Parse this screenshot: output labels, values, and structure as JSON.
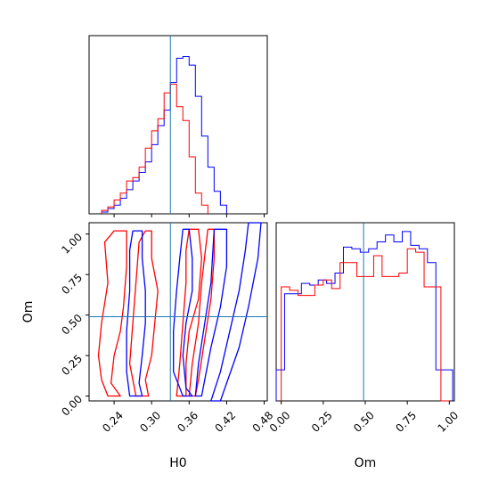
{
  "chart_data": {
    "type": "corner",
    "parameters": [
      "H0",
      "Om"
    ],
    "truths": {
      "H0": 0.33,
      "Om": 0.49
    },
    "colors": {
      "series_a": "#ff0000",
      "series_b": "#0000ff",
      "truth": "#1f77b4"
    },
    "panels": [
      {
        "id": "hist-H0",
        "type": "histogram",
        "xlim": [
          0.2,
          0.485
        ],
        "bin_width": 0.01,
        "series": [
          {
            "color": "#0000ff",
            "bin_start": 0.22,
            "values": [
              0.01,
              0.03,
              0.05,
              0.09,
              0.14,
              0.19,
              0.24,
              0.3,
              0.4,
              0.51,
              0.6,
              0.76,
              0.9,
              0.91,
              0.86,
              0.68,
              0.45,
              0.27,
              0.13,
              0.05
            ]
          },
          {
            "color": "#ff0000",
            "bin_start": 0.22,
            "values": [
              0.02,
              0.04,
              0.08,
              0.12,
              0.19,
              0.21,
              0.27,
              0.38,
              0.48,
              0.55,
              0.7,
              0.75,
              0.62,
              0.54,
              0.33,
              0.12,
              0.05
            ]
          }
        ]
      },
      {
        "id": "hist-Om",
        "type": "histogram",
        "xlim": [
          -0.03,
          1.03
        ],
        "xticks": [
          "0.00",
          "0.25",
          "0.50",
          "0.75",
          "1.00"
        ],
        "xlabel": "Om",
        "bin_width": 0.05,
        "series": [
          {
            "color": "#0000ff",
            "bin_start": -0.03,
            "values": [
              0.18,
              0.62,
              0.62,
              0.68,
              0.67,
              0.7,
              0.68,
              0.74,
              0.89,
              0.88,
              0.86,
              0.88,
              0.92,
              0.96,
              0.92,
              0.98,
              0.9,
              0.88,
              0.8,
              0.18,
              0.18
            ]
          },
          {
            "color": "#ff0000",
            "bin_start": 0.0,
            "values": [
              0.66,
              0.64,
              0.61,
              0.61,
              0.67,
              0.7,
              0.65,
              0.8,
              0.8,
              0.72,
              0.72,
              0.84,
              0.72,
              0.72,
              0.74,
              0.88,
              0.86,
              0.66,
              0.66,
              0.0
            ]
          }
        ]
      },
      {
        "id": "contour-H0-Om",
        "type": "contour",
        "xlim": [
          0.2,
          0.485
        ],
        "ylim": [
          -0.03,
          1.07
        ],
        "xticks": [
          "0.24",
          "0.30",
          "0.36",
          "0.42",
          "0.48"
        ],
        "yticks": [
          "0.00",
          "0.25",
          "0.50",
          "0.75",
          "1.00"
        ],
        "xlabel": "H0",
        "ylabel": "Om",
        "series": [
          {
            "color": "#ff0000",
            "contours": [
              [
                [
                  0.24,
                  1.02
                ],
                [
                  0.26,
                  1.02
                ],
                [
                  0.26,
                  0.8
                ],
                [
                  0.255,
                  0.55
                ],
                [
                  0.25,
                  0.4
                ],
                [
                  0.24,
                  0.25
                ],
                [
                  0.235,
                  0.08
                ],
                [
                  0.25,
                  0.0
                ],
                [
                  0.23,
                  0.0
                ],
                [
                  0.22,
                  0.1
                ],
                [
                  0.215,
                  0.25
                ],
                [
                  0.22,
                  0.45
                ],
                [
                  0.23,
                  0.7
                ],
                [
                  0.225,
                  0.95
                ],
                [
                  0.24,
                  1.02
                ]
              ],
              [
                [
                  0.29,
                  1.02
                ],
                [
                  0.3,
                  1.02
                ],
                [
                  0.3,
                  0.85
                ],
                [
                  0.31,
                  0.65
                ],
                [
                  0.305,
                  0.45
                ],
                [
                  0.3,
                  0.25
                ],
                [
                  0.29,
                  0.1
                ],
                [
                  0.295,
                  0.0
                ],
                [
                  0.275,
                  0.0
                ],
                [
                  0.265,
                  0.2
                ],
                [
                  0.27,
                  0.45
                ],
                [
                  0.275,
                  0.7
                ],
                [
                  0.28,
                  0.95
                ],
                [
                  0.29,
                  1.02
                ]
              ],
              [
                [
                  0.36,
                  1.03
                ],
                [
                  0.375,
                  1.03
                ],
                [
                  0.38,
                  0.85
                ],
                [
                  0.375,
                  0.6
                ],
                [
                  0.36,
                  0.4
                ],
                [
                  0.355,
                  0.2
                ],
                [
                  0.355,
                  0.0
                ],
                [
                  0.34,
                  0.0
                ],
                [
                  0.345,
                  0.2
                ],
                [
                  0.35,
                  0.45
                ],
                [
                  0.355,
                  0.7
                ],
                [
                  0.355,
                  0.9
                ],
                [
                  0.36,
                  1.03
                ]
              ],
              [
                [
                  0.39,
                  1.03
                ],
                [
                  0.4,
                  1.03
                ],
                [
                  0.4,
                  0.85
                ],
                [
                  0.395,
                  0.6
                ],
                [
                  0.385,
                  0.35
                ],
                [
                  0.375,
                  0.1
                ],
                [
                  0.37,
                  0.0
                ],
                [
                  0.36,
                  0.0
                ],
                [
                  0.365,
                  0.2
                ],
                [
                  0.375,
                  0.45
                ],
                [
                  0.38,
                  0.7
                ],
                [
                  0.39,
                  1.03
                ]
              ]
            ]
          },
          {
            "color": "#0000ff",
            "contours": [
              [
                [
                  0.27,
                  1.02
                ],
                [
                  0.285,
                  1.02
                ],
                [
                  0.285,
                  0.85
                ],
                [
                  0.29,
                  0.65
                ],
                [
                  0.29,
                  0.45
                ],
                [
                  0.285,
                  0.25
                ],
                [
                  0.28,
                  0.08
                ],
                [
                  0.285,
                  0.0
                ],
                [
                  0.265,
                  0.0
                ],
                [
                  0.26,
                  0.15
                ],
                [
                  0.26,
                  0.4
                ],
                [
                  0.265,
                  0.65
                ],
                [
                  0.265,
                  0.9
                ],
                [
                  0.27,
                  1.02
                ]
              ],
              [
                [
                  0.35,
                  1.03
                ],
                [
                  0.36,
                  1.03
                ],
                [
                  0.365,
                  0.85
                ],
                [
                  0.365,
                  0.65
                ],
                [
                  0.355,
                  0.45
                ],
                [
                  0.35,
                  0.25
                ],
                [
                  0.355,
                  0.05
                ],
                [
                  0.365,
                  0.0
                ],
                [
                  0.35,
                  0.0
                ],
                [
                  0.335,
                  0.15
                ],
                [
                  0.335,
                  0.4
                ],
                [
                  0.34,
                  0.65
                ],
                [
                  0.345,
                  0.85
                ],
                [
                  0.35,
                  1.03
                ]
              ],
              [
                [
                  0.4,
                  1.03
                ],
                [
                  0.42,
                  1.03
                ],
                [
                  0.42,
                  0.8
                ],
                [
                  0.41,
                  0.55
                ],
                [
                  0.395,
                  0.3
                ],
                [
                  0.385,
                  0.1
                ],
                [
                  0.38,
                  0.0
                ],
                [
                  0.37,
                  0.0
                ],
                [
                  0.375,
                  0.2
                ],
                [
                  0.385,
                  0.45
                ],
                [
                  0.395,
                  0.7
                ],
                [
                  0.4,
                  1.03
                ]
              ],
              [
                [
                  0.455,
                  1.07
                ],
                [
                  0.475,
                  1.07
                ],
                [
                  0.47,
                  0.85
                ],
                [
                  0.455,
                  0.55
                ],
                [
                  0.44,
                  0.3
                ],
                [
                  0.42,
                  0.08
                ],
                [
                  0.41,
                  -0.03
                ],
                [
                  0.395,
                  -0.03
                ],
                [
                  0.41,
                  0.15
                ],
                [
                  0.425,
                  0.4
                ],
                [
                  0.44,
                  0.65
                ],
                [
                  0.45,
                  0.9
                ],
                [
                  0.455,
                  1.07
                ]
              ]
            ]
          }
        ]
      }
    ]
  }
}
